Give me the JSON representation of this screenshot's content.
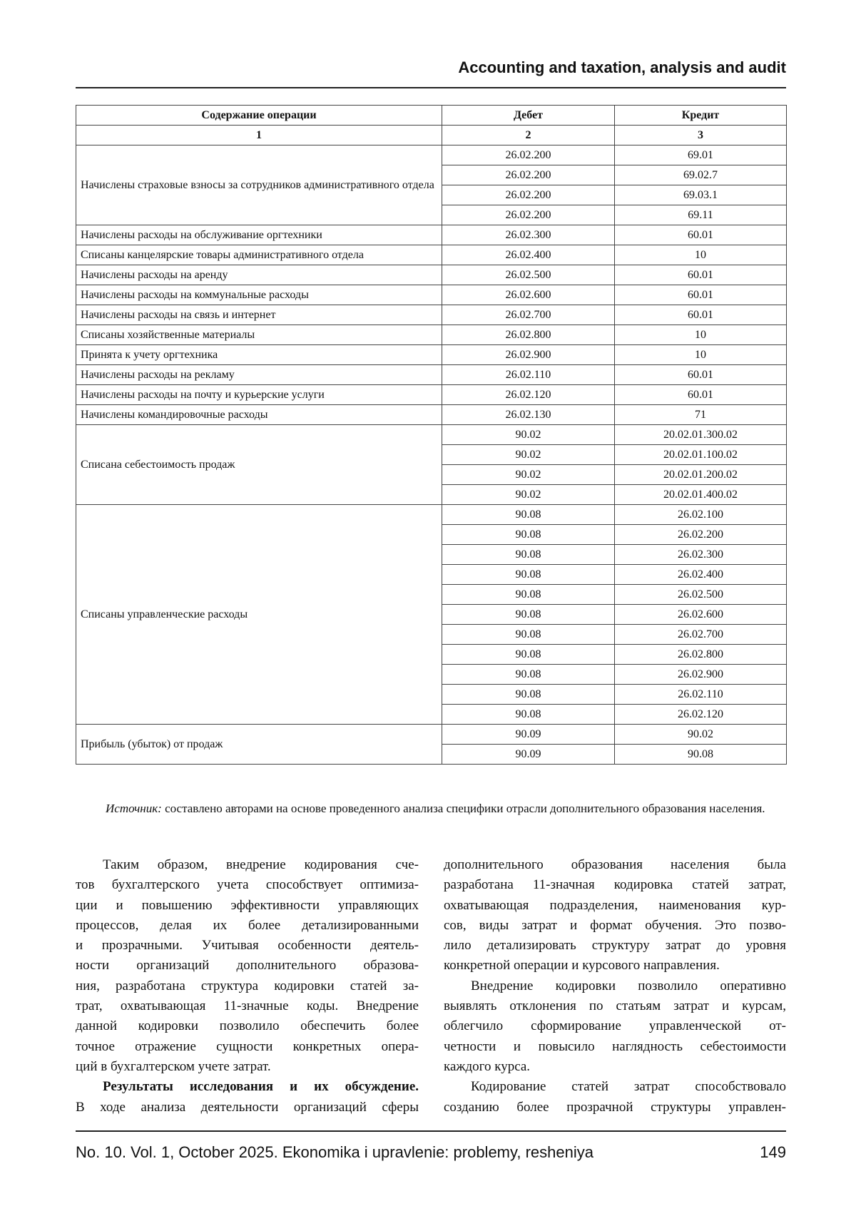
{
  "header": {
    "title": "Accounting and taxation, analysis and audit"
  },
  "table": {
    "columns": [
      "Содержание операции",
      "Дебет",
      "Кредит"
    ],
    "column_numbers": [
      "1",
      "2",
      "3"
    ],
    "rows": [
      {
        "operation": "Начислены страховые взносы за сотрудников административного отдела",
        "entries": [
          {
            "debit": "26.02.200",
            "credit": "69.01"
          },
          {
            "debit": "26.02.200",
            "credit": "69.02.7"
          },
          {
            "debit": "26.02.200",
            "credit": "69.03.1"
          },
          {
            "debit": "26.02.200",
            "credit": "69.11"
          }
        ]
      },
      {
        "operation": "Начислены расходы на обслуживание оргтехники",
        "entries": [
          {
            "debit": "26.02.300",
            "credit": "60.01"
          }
        ]
      },
      {
        "operation": "Списаны канцелярские товары административного отдела",
        "entries": [
          {
            "debit": "26.02.400",
            "credit": "10"
          }
        ]
      },
      {
        "operation": "Начислены расходы на аренду",
        "entries": [
          {
            "debit": "26.02.500",
            "credit": "60.01"
          }
        ]
      },
      {
        "operation": "Начислены расходы на коммунальные расходы",
        "entries": [
          {
            "debit": "26.02.600",
            "credit": "60.01"
          }
        ]
      },
      {
        "operation": "Начислены расходы на связь и интернет",
        "entries": [
          {
            "debit": "26.02.700",
            "credit": "60.01"
          }
        ]
      },
      {
        "operation": "Списаны хозяйственные материалы",
        "entries": [
          {
            "debit": "26.02.800",
            "credit": "10"
          }
        ]
      },
      {
        "operation": "Принята к учету оргтехника",
        "entries": [
          {
            "debit": "26.02.900",
            "credit": "10"
          }
        ]
      },
      {
        "operation": "Начислены расходы на рекламу",
        "entries": [
          {
            "debit": "26.02.110",
            "credit": "60.01"
          }
        ]
      },
      {
        "operation": "Начислены расходы на почту и курьерские услуги",
        "entries": [
          {
            "debit": "26.02.120",
            "credit": "60.01"
          }
        ]
      },
      {
        "operation": "Начислены командировочные расходы",
        "entries": [
          {
            "debit": "26.02.130",
            "credit": "71"
          }
        ]
      },
      {
        "operation": "Списана себестоимость продаж",
        "entries": [
          {
            "debit": "90.02",
            "credit": "20.02.01.300.02"
          },
          {
            "debit": "90.02",
            "credit": "20.02.01.100.02"
          },
          {
            "debit": "90.02",
            "credit": "20.02.01.200.02"
          },
          {
            "debit": "90.02",
            "credit": "20.02.01.400.02"
          }
        ]
      },
      {
        "operation": "Списаны управленческие расходы",
        "entries": [
          {
            "debit": "90.08",
            "credit": "26.02.100"
          },
          {
            "debit": "90.08",
            "credit": "26.02.200"
          },
          {
            "debit": "90.08",
            "credit": "26.02.300"
          },
          {
            "debit": "90.08",
            "credit": "26.02.400"
          },
          {
            "debit": "90.08",
            "credit": "26.02.500"
          },
          {
            "debit": "90.08",
            "credit": "26.02.600"
          },
          {
            "debit": "90.08",
            "credit": "26.02.700"
          },
          {
            "debit": "90.08",
            "credit": "26.02.800"
          },
          {
            "debit": "90.08",
            "credit": "26.02.900"
          },
          {
            "debit": "90.08",
            "credit": "26.02.110"
          },
          {
            "debit": "90.08",
            "credit": "26.02.120"
          }
        ]
      },
      {
        "operation": "Прибыль (убыток) от продаж",
        "entries": [
          {
            "debit": "90.09",
            "credit": "90.02"
          },
          {
            "debit": "90.09",
            "credit": "90.08"
          }
        ]
      }
    ]
  },
  "source": {
    "label": "Источник:",
    "text": "составлено авторами на основе проведенного анализа специфики отрасли дополнительного образования населения."
  },
  "left_column": {
    "paragraphs": [
      {
        "lines": [
          "Таким образом, внедрение кодирования сче-",
          "тов бухгалтерского учета способствует оптимиза-",
          "ции и повышению эффективности управляющих",
          "процессов, делая их более детализированными",
          "и прозрачными. Учитывая особенности деятель-",
          "ности организаций дополнительного образова-",
          "ния, разработана структура кодировки статей за-",
          "трат, охватывающая 11-значные коды. Внедрение",
          "данной кодировки позволило обеспечить более",
          "точное отражение сущности конкретных опера-",
          "ций в бухгалтерском учете затрат."
        ]
      },
      {
        "heading": "Результаты исследования и их обсуждение.",
        "lines": [
          "В ходе анализа деятельности организаций сферы"
        ]
      }
    ]
  },
  "right_column": {
    "paragraphs": [
      {
        "lines": [
          "дополнительного образования населения была",
          "разработана 11-значная кодировка статей затрат,",
          "охватывающая подразделения, наименования кур-",
          "сов, виды затрат и формат обучения. Это позво-",
          "лило детализировать структуру затрат до уровня",
          "конкретной операции и курсового направления."
        ]
      },
      {
        "lines": [
          "Внедрение кодировки позволило оперативно",
          "выявлять отклонения по статьям затрат и курсам,",
          "облегчило сформирование управленческой от-",
          "четности и повысило наглядность себестоимости",
          "каждого курса."
        ]
      },
      {
        "lines": [
          "Кодирование статей затрат способствовало",
          "созданию более прозрачной структуры управлен-"
        ]
      }
    ]
  },
  "footer": {
    "citation": "No. 10. Vol. 1, October 2025. Ekonomika i upravlenie: problemy, resheniya",
    "page": "149"
  }
}
